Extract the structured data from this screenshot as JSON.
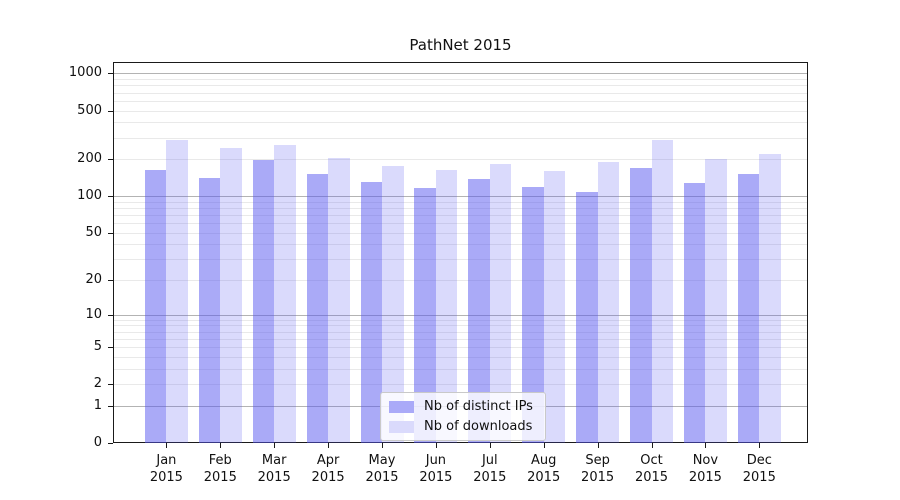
{
  "title": "PathNet 2015",
  "legend": {
    "items": [
      {
        "label": "Nb of distinct IPs",
        "color": "#aaaaf8"
      },
      {
        "label": "Nb of downloads",
        "color": "#dadafc"
      }
    ]
  },
  "chart_data": {
    "type": "bar",
    "title": "PathNet 2015",
    "yscale": "log10(x+1)",
    "ylim": [
      0,
      1240
    ],
    "grid": "on",
    "legend_position": "lower center inside plot",
    "yticks": [
      0,
      1,
      2,
      5,
      10,
      20,
      50,
      100,
      200,
      500,
      1000
    ],
    "ytick_labels": [
      "0",
      "1",
      "2",
      "5",
      "10",
      "20",
      "50",
      "100",
      "200",
      "500",
      "1000"
    ],
    "categories": [
      {
        "month": "Jan",
        "year": "2015"
      },
      {
        "month": "Feb",
        "year": "2015"
      },
      {
        "month": "Mar",
        "year": "2015"
      },
      {
        "month": "Apr",
        "year": "2015"
      },
      {
        "month": "May",
        "year": "2015"
      },
      {
        "month": "Jun",
        "year": "2015"
      },
      {
        "month": "Jul",
        "year": "2015"
      },
      {
        "month": "Aug",
        "year": "2015"
      },
      {
        "month": "Sep",
        "year": "2015"
      },
      {
        "month": "Oct",
        "year": "2015"
      },
      {
        "month": "Nov",
        "year": "2015"
      },
      {
        "month": "Dec",
        "year": "2015"
      }
    ],
    "series": [
      {
        "name": "Nb of distinct IPs",
        "key": "distinct-ips",
        "color": "rgba(85,85,240,0.5)",
        "values": [
          165,
          140,
          197,
          151,
          131,
          116,
          137,
          119,
          109,
          169,
          128,
          153
        ]
      },
      {
        "name": "Nb of downloads",
        "key": "downloads",
        "color": "rgba(85,85,240,0.22)",
        "values": [
          290,
          247,
          262,
          206,
          177,
          164,
          182,
          160,
          190,
          285,
          200,
          220
        ]
      }
    ]
  }
}
